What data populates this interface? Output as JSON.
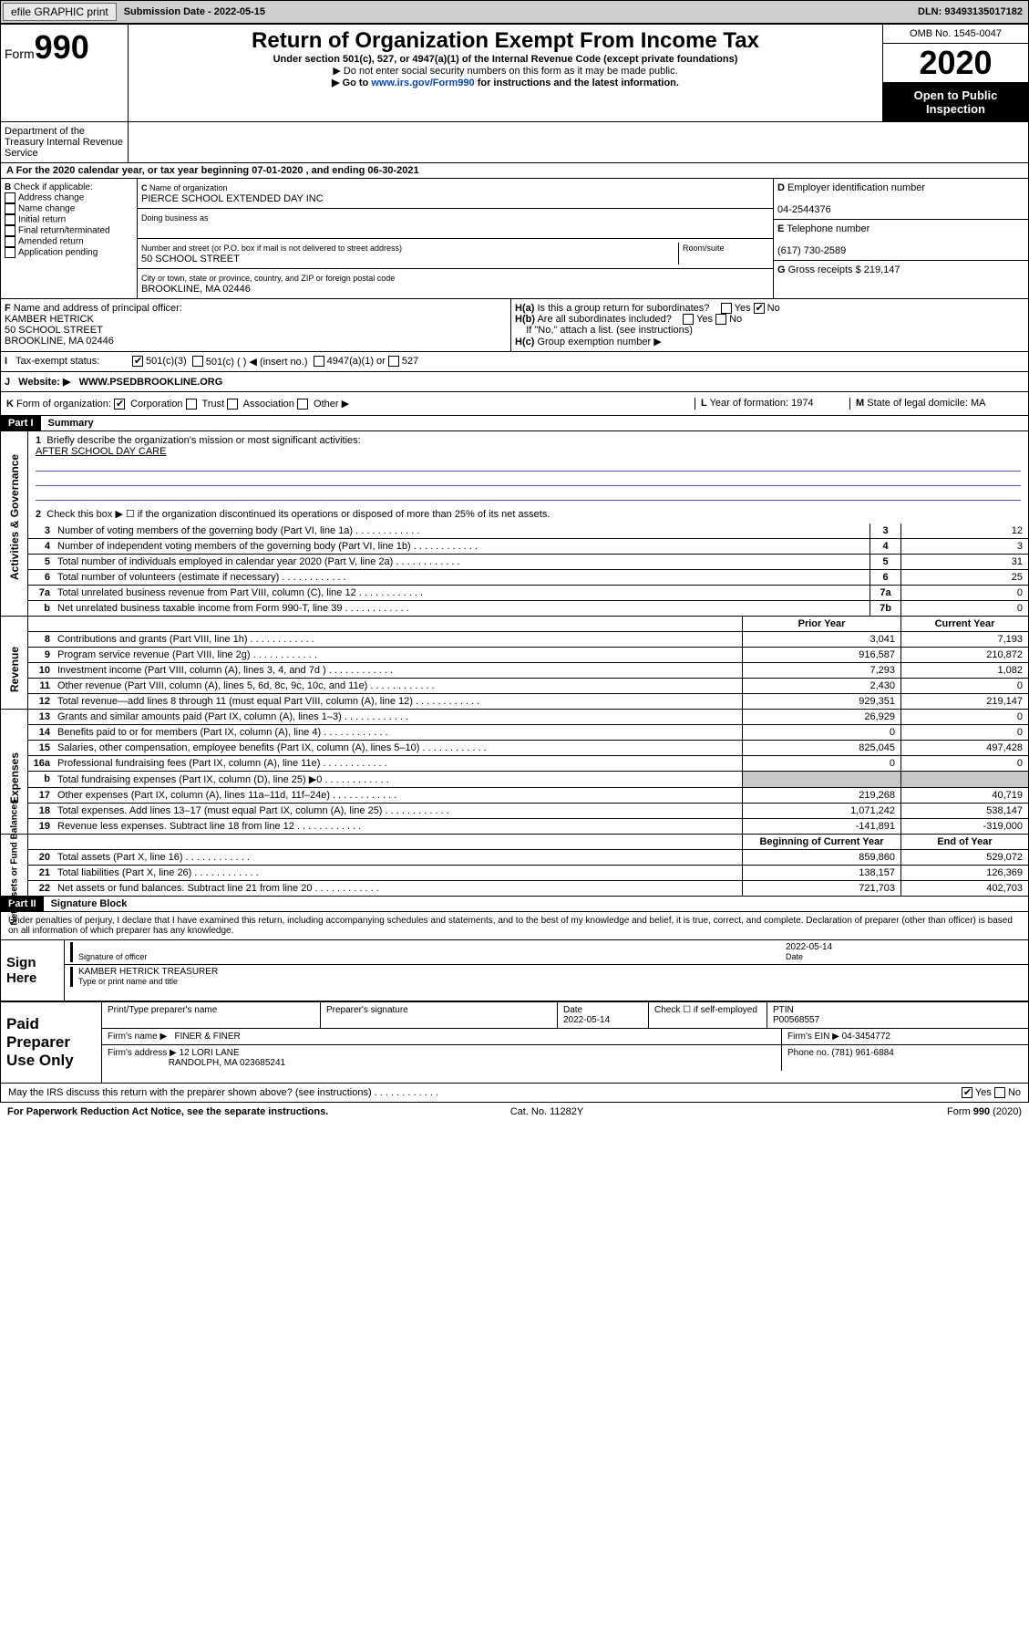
{
  "topbar": {
    "efile": "efile GRAPHIC print",
    "subdate_label": "Submission Date - ",
    "subdate": "2022-05-15",
    "dln": "DLN: 93493135017182"
  },
  "header": {
    "form_label": "Form",
    "form_num": "990",
    "title": "Return of Organization Exempt From Income Tax",
    "subtitle": "Under section 501(c), 527, or 4947(a)(1) of the Internal Revenue Code (except private foundations)",
    "note1": "Do not enter social security numbers on this form as it may be made public.",
    "note2_pre": "Go to ",
    "note2_link": "www.irs.gov/Form990",
    "note2_post": " for instructions and the latest information.",
    "omb": "OMB No. 1545-0047",
    "year": "2020",
    "open": "Open to Public Inspection",
    "dept": "Department of the Treasury Internal Revenue Service"
  },
  "period": {
    "text": "For the 2020 calendar year, or tax year beginning 07-01-2020    , and ending 06-30-2021"
  },
  "boxB": {
    "label": "Check if applicable:",
    "items": [
      "Address change",
      "Name change",
      "Initial return",
      "Final return/terminated",
      "Amended return",
      "Application pending"
    ]
  },
  "boxC": {
    "name_label": "Name of organization",
    "name": "PIERCE SCHOOL EXTENDED DAY INC",
    "dba_label": "Doing business as",
    "addr_label": "Number and street (or P.O. box if mail is not delivered to street address)",
    "room_label": "Room/suite",
    "addr": "50 SCHOOL STREET",
    "city_label": "City or town, state or province, country, and ZIP or foreign postal code",
    "city": "BROOKLINE, MA  02446"
  },
  "boxD": {
    "label": "Employer identification number",
    "val": "04-2544376"
  },
  "boxE": {
    "label": "Telephone number",
    "val": "(617) 730-2589"
  },
  "boxG": {
    "label": "Gross receipts $",
    "val": "219,147"
  },
  "boxF": {
    "label": "Name and address of principal officer:",
    "name": "KAMBER HETRICK",
    "addr1": "50 SCHOOL STREET",
    "addr2": "BROOKLINE, MA  02446"
  },
  "boxH": {
    "a": "Is this a group return for subordinates?",
    "b": "Are all subordinates included?",
    "bnote": "If \"No,\" attach a list. (see instructions)",
    "c": "Group exemption number ▶"
  },
  "taxexempt": {
    "label": "Tax-exempt status:",
    "c501c3": "501(c)(3)",
    "c501c": "501(c) (   ) ◀ (insert no.)",
    "c4947": "4947(a)(1) or",
    "c527": "527"
  },
  "website": {
    "label": "Website: ▶",
    "val": "WWW.PSEDBROOKLINE.ORG"
  },
  "kline": {
    "label": "Form of organization:",
    "opts": [
      "Corporation",
      "Trust",
      "Association",
      "Other ▶"
    ],
    "yof_label": "Year of formation:",
    "yof": "1974",
    "dom_label": "State of legal domicile:",
    "dom": "MA"
  },
  "part1": {
    "bar": "Part I",
    "title": "Summary"
  },
  "summary": {
    "q1": "Briefly describe the organization's mission or most significant activities:",
    "mission": "AFTER SCHOOL DAY CARE",
    "q2": "Check this box ▶ ☐  if the organization discontinued its operations or disposed of more than 25% of its net assets.",
    "lines_gov": [
      {
        "n": "3",
        "t": "Number of voting members of the governing body (Part VI, line 1a)",
        "bx": "3",
        "v": "12"
      },
      {
        "n": "4",
        "t": "Number of independent voting members of the governing body (Part VI, line 1b)",
        "bx": "4",
        "v": "3"
      },
      {
        "n": "5",
        "t": "Total number of individuals employed in calendar year 2020 (Part V, line 2a)",
        "bx": "5",
        "v": "31"
      },
      {
        "n": "6",
        "t": "Total number of volunteers (estimate if necessary)",
        "bx": "6",
        "v": "25"
      },
      {
        "n": "7a",
        "t": "Total unrelated business revenue from Part VIII, column (C), line 12",
        "bx": "7a",
        "v": "0"
      },
      {
        "n": "b",
        "t": "Net unrelated business taxable income from Form 990-T, line 39",
        "bx": "7b",
        "v": "0"
      }
    ],
    "hdr_prior": "Prior Year",
    "hdr_curr": "Current Year",
    "lines_rev": [
      {
        "n": "8",
        "t": "Contributions and grants (Part VIII, line 1h)",
        "p": "3,041",
        "c": "7,193"
      },
      {
        "n": "9",
        "t": "Program service revenue (Part VIII, line 2g)",
        "p": "916,587",
        "c": "210,872"
      },
      {
        "n": "10",
        "t": "Investment income (Part VIII, column (A), lines 3, 4, and 7d )",
        "p": "7,293",
        "c": "1,082"
      },
      {
        "n": "11",
        "t": "Other revenue (Part VIII, column (A), lines 5, 6d, 8c, 9c, 10c, and 11e)",
        "p": "2,430",
        "c": "0"
      },
      {
        "n": "12",
        "t": "Total revenue—add lines 8 through 11 (must equal Part VIII, column (A), line 12)",
        "p": "929,351",
        "c": "219,147"
      }
    ],
    "lines_exp": [
      {
        "n": "13",
        "t": "Grants and similar amounts paid (Part IX, column (A), lines 1–3)",
        "p": "26,929",
        "c": "0"
      },
      {
        "n": "14",
        "t": "Benefits paid to or for members (Part IX, column (A), line 4)",
        "p": "0",
        "c": "0"
      },
      {
        "n": "15",
        "t": "Salaries, other compensation, employee benefits (Part IX, column (A), lines 5–10)",
        "p": "825,045",
        "c": "497,428"
      },
      {
        "n": "16a",
        "t": "Professional fundraising fees (Part IX, column (A), line 11e)",
        "p": "0",
        "c": "0"
      },
      {
        "n": "b",
        "t": "Total fundraising expenses (Part IX, column (D), line 25) ▶0",
        "p": "",
        "c": "",
        "shaded": true
      },
      {
        "n": "17",
        "t": "Other expenses (Part IX, column (A), lines 11a–11d, 11f–24e)",
        "p": "219,268",
        "c": "40,719"
      },
      {
        "n": "18",
        "t": "Total expenses. Add lines 13–17 (must equal Part IX, column (A), line 25)",
        "p": "1,071,242",
        "c": "538,147"
      },
      {
        "n": "19",
        "t": "Revenue less expenses. Subtract line 18 from line 12",
        "p": "-141,891",
        "c": "-319,000"
      }
    ],
    "hdr_beg": "Beginning of Current Year",
    "hdr_end": "End of Year",
    "lines_nab": [
      {
        "n": "20",
        "t": "Total assets (Part X, line 16)",
        "p": "859,860",
        "c": "529,072"
      },
      {
        "n": "21",
        "t": "Total liabilities (Part X, line 26)",
        "p": "138,157",
        "c": "126,369"
      },
      {
        "n": "22",
        "t": "Net assets or fund balances. Subtract line 21 from line 20",
        "p": "721,703",
        "c": "402,703"
      }
    ]
  },
  "part2": {
    "bar": "Part II",
    "title": "Signature Block"
  },
  "sig": {
    "decl": "Under penalties of perjury, I declare that I have examined this return, including accompanying schedules and statements, and to the best of my knowledge and belief, it is true, correct, and complete. Declaration of preparer (other than officer) is based on all information of which preparer has any knowledge.",
    "sign_here": "Sign Here",
    "sig_officer": "Signature of officer",
    "date": "Date",
    "date_val": "2022-05-14",
    "typed": "KAMBER HETRICK  TREASURER",
    "typed_label": "Type or print name and title"
  },
  "prep": {
    "label": "Paid Preparer Use Only",
    "hname": "Print/Type preparer's name",
    "hsig": "Preparer's signature",
    "hdate": "Date",
    "hdate_val": "2022-05-14",
    "hcheck": "Check ☐ if self-employed",
    "hptin": "PTIN",
    "ptin": "P00568557",
    "firm_label": "Firm's name    ▶",
    "firm": "FINER & FINER",
    "ein_label": "Firm's EIN ▶",
    "ein": "04-3454772",
    "addr_label": "Firm's address ▶",
    "addr1": "12 LORI LANE",
    "addr2": "RANDOLPH, MA  023685241",
    "phone_label": "Phone no.",
    "phone": "(781) 961-6884"
  },
  "footer": {
    "discuss": "May the IRS discuss this return with the preparer shown above? (see instructions)",
    "paperwork": "For Paperwork Reduction Act Notice, see the separate instructions.",
    "cat": "Cat. No. 11282Y",
    "form": "Form 990 (2020)"
  }
}
